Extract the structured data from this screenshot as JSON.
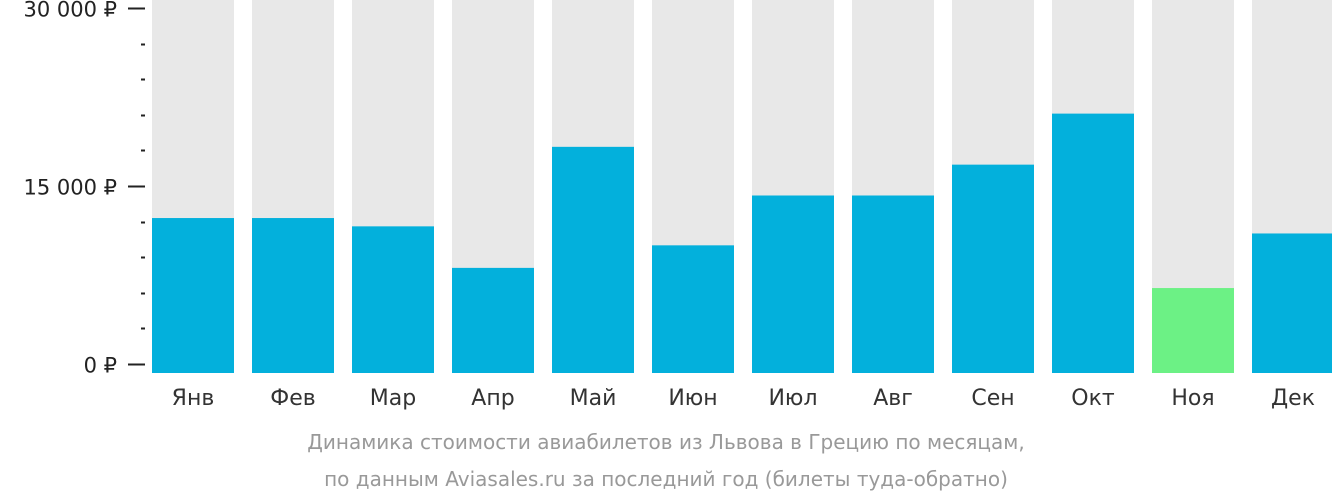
{
  "chart_data": {
    "type": "bar",
    "categories": [
      "Янв",
      "Фев",
      "Мар",
      "Апр",
      "Май",
      "Июн",
      "Июл",
      "Авг",
      "Сен",
      "Окт",
      "Ноя",
      "Дек"
    ],
    "values": [
      12300,
      12300,
      11600,
      8100,
      18300,
      10000,
      14200,
      14200,
      16800,
      21100,
      6400,
      11000
    ],
    "ylim": [
      0,
      30000
    ],
    "yticks": [
      {
        "value": 0,
        "label": "0 ₽"
      },
      {
        "value": 15000,
        "label": "15 000 ₽"
      },
      {
        "value": 30000,
        "label": "30 000 ₽"
      }
    ],
    "minor_tick_step": 3000,
    "highlight_index": 10,
    "colors": {
      "bar": "#03b0dc",
      "highlight": "#6cf185",
      "background_bar": "#e8e8e8",
      "axis": "#222222"
    },
    "grid": false,
    "legend": "none"
  },
  "caption": {
    "line1": "Динамика стоимости авиабилетов из Львова в Грецию по месяцам,",
    "line2": "по данным Aviasales.ru за последний год (билеты туда-обратно)"
  }
}
